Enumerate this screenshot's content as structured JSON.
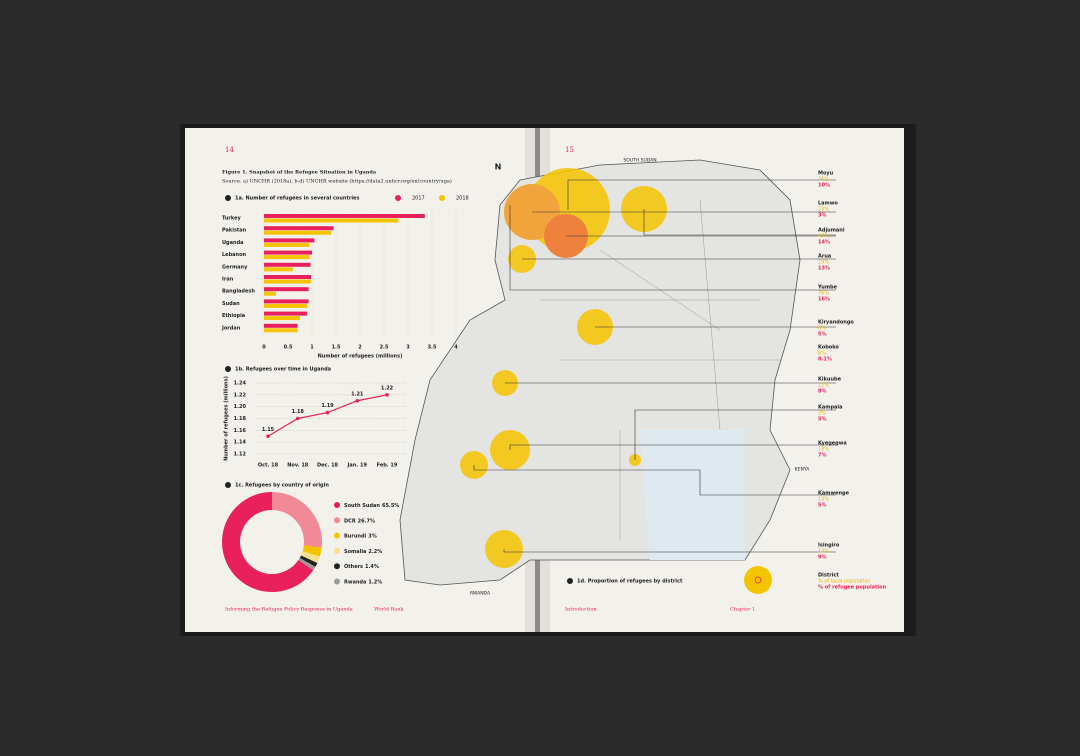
{
  "left_page": {
    "page_number": "14",
    "figure_title": "Figure 1. Snapshot of the Refugee Situation in Uganda",
    "figure_source": "Source. a) UNCHR (2018a), b-d) UNCHR website (https://data2.unhcr.org/en/country/uga)",
    "footer_title": "Informing the Refugee Policy Response in Uganda",
    "footer_org": "World Bank"
  },
  "right_page": {
    "page_number": "15",
    "map_title": "1d. Proportion of refugees by district",
    "footer_left": "Introduction",
    "footer_right": "Chapter 1",
    "north": "N",
    "labels": [
      "SOUTH SUDAN",
      "KENYA",
      "RWANDA"
    ],
    "districts": [
      {
        "name": "Moyu",
        "local": "16%",
        "refugee": "10%"
      },
      {
        "name": "Lamwo",
        "local": "23%",
        "refugee": "3%"
      },
      {
        "name": "Adjumani",
        "local": "47%",
        "refugee": "14%"
      },
      {
        "name": "Arua",
        "local": "19%",
        "refugee": "13%"
      },
      {
        "name": "Yumbe",
        "local": "76%",
        "refugee": "16%"
      },
      {
        "name": "Kiryandongo",
        "local": "6%",
        "refugee": "5%"
      },
      {
        "name": "Koboko",
        "local": "8%",
        "refugee": "0.1%"
      },
      {
        "name": "Kikuube",
        "local": "12%",
        "refugee": "8%"
      },
      {
        "name": "Kampala",
        "local": "2%",
        "refugee": "5%"
      },
      {
        "name": "Kyegegwa",
        "local": "18%",
        "refugee": "7%"
      },
      {
        "name": "Kamwenge",
        "local": "13%",
        "refugee": "5%"
      },
      {
        "name": "Isingiro",
        "local": "13%",
        "refugee": "9%"
      }
    ],
    "legend": {
      "district": "District",
      "local": "% of local population",
      "refugee": "% of refugee population"
    }
  },
  "chart_data": [
    {
      "type": "bar",
      "title": "1a. Number of refugees in several countries",
      "categories": [
        "Turkey",
        "Pakistan",
        "Uganda",
        "Lebanon",
        "Germany",
        "Iran",
        "Bangladesh",
        "Sudan",
        "Ethiopia",
        "Jordan"
      ],
      "series": [
        {
          "name": "2017",
          "color": "#e8215e",
          "values": [
            3.35,
            1.45,
            1.05,
            1.0,
            0.97,
            0.98,
            0.93,
            0.93,
            0.9,
            0.7
          ]
        },
        {
          "name": "2018",
          "color": "#f5c400",
          "values": [
            2.8,
            1.4,
            0.95,
            0.95,
            0.6,
            0.98,
            0.25,
            0.9,
            0.75,
            0.7
          ]
        }
      ],
      "xlim": [
        0,
        4
      ],
      "xticks": [
        0,
        0.5,
        1,
        1.5,
        2,
        2.5,
        3,
        3.5,
        4
      ],
      "x_label": "Number of refugees (millions)",
      "grid": true
    },
    {
      "type": "line",
      "title": "1b. Refugees over time in Uganda",
      "categories": [
        "Oct. 18",
        "Nov. 18",
        "Dec. 18",
        "Jan. 19",
        "Feb. 19"
      ],
      "values": [
        1.15,
        1.18,
        1.19,
        1.21,
        1.22
      ],
      "color": "#e8215e",
      "ylim": [
        1.12,
        1.24
      ],
      "yticks": [
        1.12,
        1.14,
        1.16,
        1.18,
        {
          "value": 1.2,
          "label": "1.20"
        },
        1.22,
        1.24
      ],
      "y_label": "Number of refugees (millions)",
      "grid": true
    },
    {
      "type": "pie",
      "title": "1c. Refugees by country of origin",
      "categories": [
        "South Sudan",
        "DCR",
        "Burundi",
        "Somalia",
        "Others",
        "Rwanda"
      ],
      "values": [
        65.5,
        26.7,
        3,
        2.2,
        1.4,
        1.2
      ],
      "value_labels": [
        "65.5%",
        "26.7%",
        "3%",
        "2.2%",
        "1.4%",
        "1.2%"
      ],
      "colors": [
        "#e8215e",
        "#f08a96",
        "#f5c400",
        "#f7e08a",
        "#222222",
        "#999999"
      ]
    }
  ]
}
